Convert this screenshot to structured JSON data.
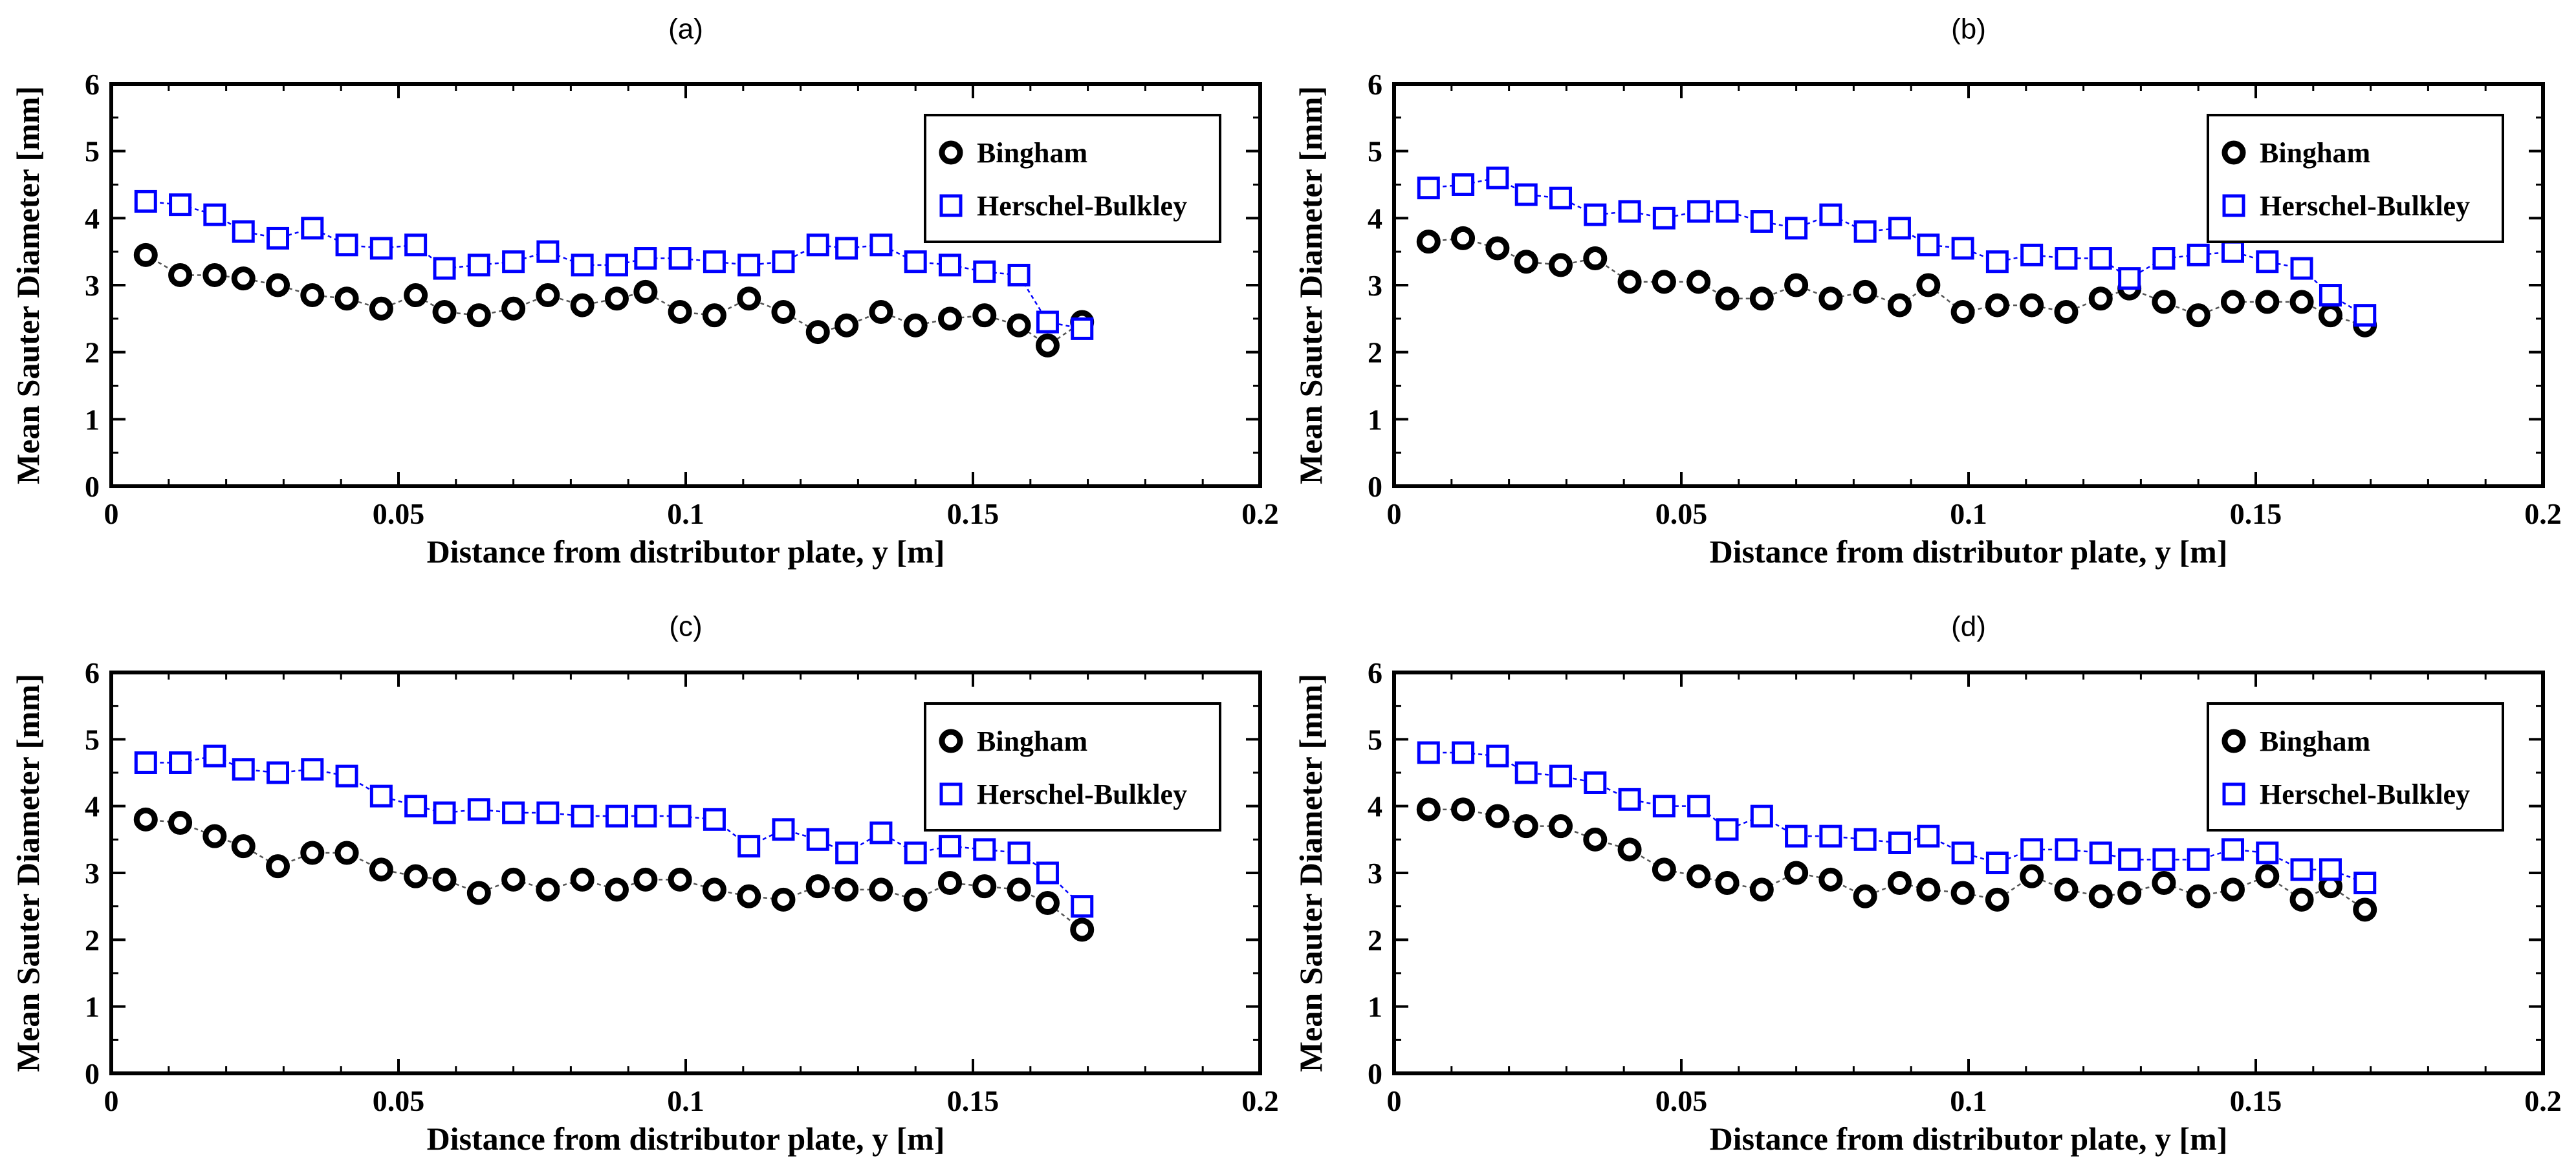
{
  "chart_data": [
    {
      "type": "scatter",
      "title": "(a)",
      "xlabel": "Distance from distributor plate, y [m]",
      "ylabel": "Mean Sauter Diameter [mm]",
      "xlim": [
        0,
        0.2
      ],
      "ylim": [
        0,
        6
      ],
      "x_ticks": [
        "0",
        "0.05",
        "0.1",
        "0.15",
        "0.2"
      ],
      "y_ticks": [
        "0",
        "1",
        "2",
        "3",
        "4",
        "5",
        "6"
      ],
      "grid": false,
      "legend_position": "top-right",
      "series": [
        {
          "name": "Bingham",
          "marker": "circle",
          "color": "#000000",
          "x": [
            0.006,
            0.012,
            0.018,
            0.023,
            0.029,
            0.035,
            0.041,
            0.047,
            0.053,
            0.058,
            0.064,
            0.07,
            0.076,
            0.082,
            0.088,
            0.093,
            0.099,
            0.105,
            0.111,
            0.117,
            0.123,
            0.128,
            0.134,
            0.14,
            0.146,
            0.152,
            0.158,
            0.163,
            0.169
          ],
          "y": [
            3.45,
            3.15,
            3.15,
            3.1,
            3.0,
            2.85,
            2.8,
            2.65,
            2.85,
            2.6,
            2.55,
            2.65,
            2.85,
            2.7,
            2.8,
            2.9,
            2.6,
            2.55,
            2.8,
            2.6,
            2.3,
            2.4,
            2.6,
            2.4,
            2.5,
            2.55,
            2.4,
            2.1,
            2.45
          ]
        },
        {
          "name": "Herschel-Bulkley",
          "marker": "square",
          "color": "#0000ff",
          "x": [
            0.006,
            0.012,
            0.018,
            0.023,
            0.029,
            0.035,
            0.041,
            0.047,
            0.053,
            0.058,
            0.064,
            0.07,
            0.076,
            0.082,
            0.088,
            0.093,
            0.099,
            0.105,
            0.111,
            0.117,
            0.123,
            0.128,
            0.134,
            0.14,
            0.146,
            0.152,
            0.158,
            0.163,
            0.169
          ],
          "y": [
            4.25,
            4.2,
            4.05,
            3.8,
            3.7,
            3.85,
            3.6,
            3.55,
            3.6,
            3.25,
            3.3,
            3.35,
            3.5,
            3.3,
            3.3,
            3.4,
            3.4,
            3.35,
            3.3,
            3.35,
            3.6,
            3.55,
            3.6,
            3.35,
            3.3,
            3.2,
            3.15,
            2.45,
            2.35
          ]
        }
      ]
    },
    {
      "type": "scatter",
      "title": "(b)",
      "xlabel": "Distance from distributor plate, y [m]",
      "ylabel": "Mean Sauter Diameter [mm]",
      "xlim": [
        0,
        0.2
      ],
      "ylim": [
        0,
        6
      ],
      "x_ticks": [
        "0",
        "0.05",
        "0.1",
        "0.15",
        "0.2"
      ],
      "y_ticks": [
        "0",
        "1",
        "2",
        "3",
        "4",
        "5",
        "6"
      ],
      "grid": false,
      "legend_position": "top-right",
      "series": [
        {
          "name": "Bingham",
          "marker": "circle",
          "color": "#000000",
          "x": [
            0.006,
            0.012,
            0.018,
            0.023,
            0.029,
            0.035,
            0.041,
            0.047,
            0.053,
            0.058,
            0.064,
            0.07,
            0.076,
            0.082,
            0.088,
            0.093,
            0.099,
            0.105,
            0.111,
            0.117,
            0.123,
            0.128,
            0.134,
            0.14,
            0.146,
            0.152,
            0.158,
            0.163,
            0.169
          ],
          "y": [
            3.65,
            3.7,
            3.55,
            3.35,
            3.3,
            3.4,
            3.05,
            3.05,
            3.05,
            2.8,
            2.8,
            3.0,
            2.8,
            2.9,
            2.7,
            3.0,
            2.6,
            2.7,
            2.7,
            2.6,
            2.8,
            2.95,
            2.75,
            2.55,
            2.75,
            2.75,
            2.75,
            2.55,
            2.4
          ]
        },
        {
          "name": "Herschel-Bulkley",
          "marker": "square",
          "color": "#0000ff",
          "x": [
            0.006,
            0.012,
            0.018,
            0.023,
            0.029,
            0.035,
            0.041,
            0.047,
            0.053,
            0.058,
            0.064,
            0.07,
            0.076,
            0.082,
            0.088,
            0.093,
            0.099,
            0.105,
            0.111,
            0.117,
            0.123,
            0.128,
            0.134,
            0.14,
            0.146,
            0.152,
            0.158,
            0.163,
            0.169
          ],
          "y": [
            4.45,
            4.5,
            4.6,
            4.35,
            4.3,
            4.05,
            4.1,
            4.0,
            4.1,
            4.1,
            3.95,
            3.85,
            4.05,
            3.8,
            3.85,
            3.6,
            3.55,
            3.35,
            3.45,
            3.4,
            3.4,
            3.1,
            3.4,
            3.45,
            3.5,
            3.35,
            3.25,
            2.85,
            2.55
          ]
        }
      ]
    },
    {
      "type": "scatter",
      "title": "(c)",
      "xlabel": "Distance from distributor plate, y [m]",
      "ylabel": "Mean Sauter Diameter [mm]",
      "xlim": [
        0,
        0.2
      ],
      "ylim": [
        0,
        6
      ],
      "x_ticks": [
        "0",
        "0.05",
        "0.1",
        "0.15",
        "0.2"
      ],
      "y_ticks": [
        "0",
        "1",
        "2",
        "3",
        "4",
        "5",
        "6"
      ],
      "grid": false,
      "legend_position": "top-right",
      "series": [
        {
          "name": "Bingham",
          "marker": "circle",
          "color": "#000000",
          "x": [
            0.006,
            0.012,
            0.018,
            0.023,
            0.029,
            0.035,
            0.041,
            0.047,
            0.053,
            0.058,
            0.064,
            0.07,
            0.076,
            0.082,
            0.088,
            0.093,
            0.099,
            0.105,
            0.111,
            0.117,
            0.123,
            0.128,
            0.134,
            0.14,
            0.146,
            0.152,
            0.158,
            0.163,
            0.169
          ],
          "y": [
            3.8,
            3.75,
            3.55,
            3.4,
            3.1,
            3.3,
            3.3,
            3.05,
            2.95,
            2.9,
            2.7,
            2.9,
            2.75,
            2.9,
            2.75,
            2.9,
            2.9,
            2.75,
            2.65,
            2.6,
            2.8,
            2.75,
            2.75,
            2.6,
            2.85,
            2.8,
            2.75,
            2.55,
            2.15
          ]
        },
        {
          "name": "Herschel-Bulkley",
          "marker": "square",
          "color": "#0000ff",
          "x": [
            0.006,
            0.012,
            0.018,
            0.023,
            0.029,
            0.035,
            0.041,
            0.047,
            0.053,
            0.058,
            0.064,
            0.07,
            0.076,
            0.082,
            0.088,
            0.093,
            0.099,
            0.105,
            0.111,
            0.117,
            0.123,
            0.128,
            0.134,
            0.14,
            0.146,
            0.152,
            0.158,
            0.163,
            0.169
          ],
          "y": [
            4.65,
            4.65,
            4.75,
            4.55,
            4.5,
            4.55,
            4.45,
            4.15,
            4.0,
            3.9,
            3.95,
            3.9,
            3.9,
            3.85,
            3.85,
            3.85,
            3.85,
            3.8,
            3.4,
            3.65,
            3.5,
            3.3,
            3.6,
            3.3,
            3.4,
            3.35,
            3.3,
            3.0,
            2.5
          ]
        }
      ]
    },
    {
      "type": "scatter",
      "title": "(d)",
      "xlabel": "Distance from distributor plate, y [m]",
      "ylabel": "Mean Sauter Diameter [mm]",
      "xlim": [
        0,
        0.2
      ],
      "ylim": [
        0,
        6
      ],
      "x_ticks": [
        "0",
        "0.05",
        "0.1",
        "0.15",
        "0.2"
      ],
      "y_ticks": [
        "0",
        "1",
        "2",
        "3",
        "4",
        "5",
        "6"
      ],
      "grid": false,
      "legend_position": "top-right",
      "series": [
        {
          "name": "Bingham",
          "marker": "circle",
          "color": "#000000",
          "x": [
            0.006,
            0.012,
            0.018,
            0.023,
            0.029,
            0.035,
            0.041,
            0.047,
            0.053,
            0.058,
            0.064,
            0.07,
            0.076,
            0.082,
            0.088,
            0.093,
            0.099,
            0.105,
            0.111,
            0.117,
            0.123,
            0.128,
            0.134,
            0.14,
            0.146,
            0.152,
            0.158,
            0.163,
            0.169
          ],
          "y": [
            3.95,
            3.95,
            3.85,
            3.7,
            3.7,
            3.5,
            3.35,
            3.05,
            2.95,
            2.85,
            2.75,
            3.0,
            2.9,
            2.65,
            2.85,
            2.75,
            2.7,
            2.6,
            2.95,
            2.75,
            2.65,
            2.7,
            2.85,
            2.65,
            2.75,
            2.95,
            2.6,
            2.8,
            2.45
          ]
        },
        {
          "name": "Herschel-Bulkley",
          "marker": "square",
          "color": "#0000ff",
          "x": [
            0.006,
            0.012,
            0.018,
            0.023,
            0.029,
            0.035,
            0.041,
            0.047,
            0.053,
            0.058,
            0.064,
            0.07,
            0.076,
            0.082,
            0.088,
            0.093,
            0.099,
            0.105,
            0.111,
            0.117,
            0.123,
            0.128,
            0.134,
            0.14,
            0.146,
            0.152,
            0.158,
            0.163,
            0.169
          ],
          "y": [
            4.8,
            4.8,
            4.75,
            4.5,
            4.45,
            4.35,
            4.1,
            4.0,
            4.0,
            3.65,
            3.85,
            3.55,
            3.55,
            3.5,
            3.45,
            3.55,
            3.3,
            3.15,
            3.35,
            3.35,
            3.3,
            3.2,
            3.2,
            3.2,
            3.35,
            3.3,
            3.05,
            3.05,
            2.85
          ]
        }
      ]
    }
  ]
}
